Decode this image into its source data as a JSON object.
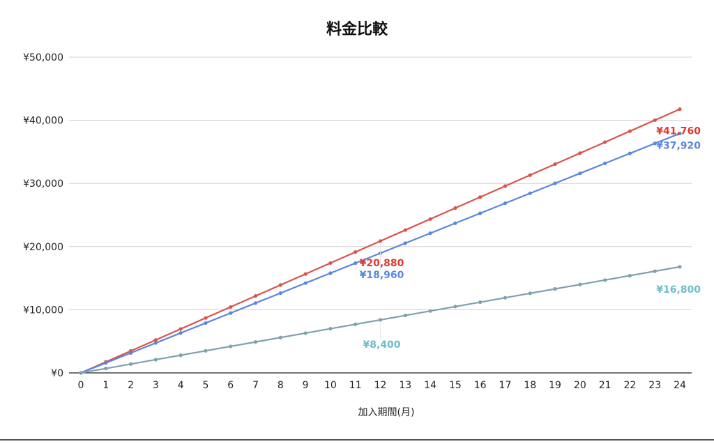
{
  "chart_data": {
    "type": "line",
    "title": "料金比較",
    "xlabel": "加入期間(月)",
    "ylabel": "",
    "x": [
      0,
      1,
      2,
      3,
      4,
      5,
      6,
      7,
      8,
      9,
      10,
      11,
      12,
      13,
      14,
      15,
      16,
      17,
      18,
      19,
      20,
      21,
      22,
      23,
      24
    ],
    "ylim": [
      0,
      50000
    ],
    "yticks": [
      0,
      10000,
      20000,
      30000,
      40000,
      50000
    ],
    "ytick_labels": [
      "¥0",
      "¥10,000",
      "¥20,000",
      "¥30,000",
      "¥40,000",
      "¥50,000"
    ],
    "grid": true,
    "legend": "none",
    "series": [
      {
        "color": "#d9534a",
        "values": [
          0,
          1740,
          3480,
          5220,
          6960,
          8700,
          10440,
          12180,
          13920,
          15660,
          17400,
          19140,
          20880,
          22620,
          24360,
          26100,
          27840,
          29580,
          31320,
          33060,
          34800,
          36540,
          38280,
          40020,
          41760
        ],
        "labels": [
          {
            "x": 12,
            "text": "¥20,880"
          },
          {
            "x": 24,
            "text": "¥41,760"
          }
        ],
        "label_color": "#e0382f"
      },
      {
        "color": "#5b86e0",
        "values": [
          0,
          1580,
          3160,
          4740,
          6320,
          7900,
          9480,
          11060,
          12640,
          14220,
          15800,
          17380,
          18960,
          20540,
          22120,
          23700,
          25280,
          26860,
          28440,
          30020,
          31600,
          33180,
          34760,
          36340,
          37920
        ],
        "labels": [
          {
            "x": 12,
            "text": "¥18,960"
          },
          {
            "x": 24,
            "text": "¥37,920"
          }
        ],
        "label_color": "#5b86e0"
      },
      {
        "color": "#7fa0ad",
        "values": [
          0,
          700,
          1400,
          2100,
          2800,
          3500,
          4200,
          4900,
          5600,
          6300,
          7000,
          7700,
          8400,
          9100,
          9800,
          10500,
          11200,
          11900,
          12600,
          13300,
          14000,
          14700,
          15400,
          16100,
          16800
        ],
        "labels": [
          {
            "x": 12,
            "text": "¥8,400"
          },
          {
            "x": 24,
            "text": "¥16,800"
          }
        ],
        "label_color": "#6cbccb"
      }
    ]
  }
}
